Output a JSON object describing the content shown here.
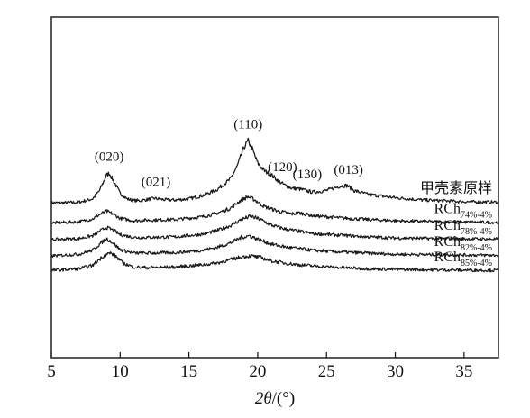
{
  "chart_data": {
    "type": "line",
    "xlabel_italic": "2θ",
    "xlabel_rest": "/(°)",
    "xlim": [
      5,
      37.5
    ],
    "xticks": [
      5,
      10,
      15,
      20,
      25,
      30,
      35
    ],
    "tick_labels": [
      "5",
      "10",
      "15",
      "20",
      "25",
      "30",
      "35"
    ],
    "peak_labels": [
      {
        "text": "(020)",
        "x": 9.2
      },
      {
        "text": "(021)",
        "x": 12.6
      },
      {
        "text": "(110)",
        "x": 19.3
      },
      {
        "text": "(120)",
        "x": 21.8
      },
      {
        "text": "(130)",
        "x": 23.6
      },
      {
        "text": "(013)",
        "x": 26.6
      }
    ],
    "series": [
      {
        "name": "甲壳素原样",
        "name_base": "甲壳素原样",
        "name_sub": "",
        "baseline": 0.0,
        "x": [
          5,
          6,
          7,
          8,
          8.5,
          9,
          9.2,
          9.5,
          10,
          10.5,
          11,
          11.5,
          12,
          12.5,
          13,
          13.5,
          14,
          15,
          16,
          17,
          18,
          18.5,
          19,
          19.3,
          19.6,
          20,
          20.5,
          21,
          21.5,
          22,
          22.5,
          23,
          23.5,
          24,
          25,
          26,
          26.5,
          27,
          28,
          30,
          32,
          35,
          37.5
        ],
        "y": [
          0.3,
          0.3,
          0.4,
          1.0,
          2.5,
          5.2,
          5.6,
          4.3,
          2.0,
          1.0,
          0.7,
          0.7,
          0.9,
          1.1,
          0.9,
          0.8,
          0.8,
          1.0,
          1.6,
          2.6,
          4.5,
          6.8,
          10.2,
          11.4,
          10.0,
          7.4,
          6.0,
          5.3,
          4.2,
          3.4,
          2.9,
          2.8,
          2.5,
          2.2,
          2.5,
          3.3,
          3.4,
          2.5,
          1.8,
          1.2,
          0.8,
          0.5,
          0.4
        ]
      },
      {
        "name": "RCh74%-4%",
        "name_base": "RCh",
        "name_sub": "74%-4%",
        "baseline": -3.3,
        "x": [
          5,
          7,
          8,
          8.5,
          9,
          9.5,
          10,
          11,
          12,
          14,
          16,
          17,
          18,
          18.8,
          19.3,
          19.8,
          20.5,
          21.5,
          22.5,
          23,
          24,
          26,
          28,
          30,
          33,
          37.5
        ],
        "y": [
          0.0,
          0.2,
          0.7,
          1.5,
          2.1,
          1.6,
          0.8,
          0.4,
          0.5,
          0.6,
          1.1,
          1.7,
          2.6,
          4.1,
          4.7,
          4.1,
          2.9,
          2.1,
          1.6,
          1.8,
          1.3,
          0.9,
          0.6,
          0.4,
          0.2,
          0.1
        ]
      },
      {
        "name": "RCh78%-4%",
        "name_base": "RCh",
        "name_sub": "78%-4%",
        "baseline": -6.3,
        "x": [
          5,
          7,
          8,
          8.5,
          9,
          9.5,
          10,
          11,
          12,
          14,
          16,
          17,
          18,
          18.8,
          19.5,
          20.2,
          21,
          22,
          23,
          24,
          26,
          28,
          30,
          33,
          37.5
        ],
        "y": [
          0.0,
          0.2,
          0.7,
          1.5,
          2.2,
          1.7,
          0.9,
          0.4,
          0.4,
          0.5,
          1.0,
          1.6,
          2.5,
          3.6,
          4.2,
          3.6,
          2.6,
          1.9,
          1.5,
          1.1,
          0.8,
          0.5,
          0.3,
          0.2,
          0.1
        ]
      },
      {
        "name": "RCh82%-4%",
        "name_base": "RCh",
        "name_sub": "82%-4%",
        "baseline": -9.2,
        "x": [
          5,
          7,
          8,
          8.5,
          9,
          9.5,
          10,
          11,
          12,
          14,
          16,
          17,
          18,
          18.8,
          19.4,
          20,
          21,
          22,
          23,
          24,
          26,
          28,
          30,
          33,
          37.5
        ],
        "y": [
          0.0,
          0.3,
          1.0,
          2.1,
          3.1,
          2.3,
          1.1,
          0.5,
          0.5,
          0.6,
          1.0,
          1.5,
          2.3,
          3.3,
          3.6,
          3.0,
          2.1,
          1.6,
          1.3,
          1.0,
          0.7,
          0.5,
          0.3,
          0.2,
          0.1
        ]
      },
      {
        "name": "RCh85%-4%",
        "name_base": "RCh",
        "name_sub": "85%-4%",
        "baseline": -11.8,
        "x": [
          5,
          7,
          8,
          8.5,
          9,
          9.3,
          9.7,
          10.2,
          11,
          12,
          14,
          16,
          17,
          18,
          18.8,
          19.5,
          20.2,
          21,
          22,
          23,
          24,
          26,
          28,
          30,
          33,
          37.5
        ],
        "y": [
          0.0,
          0.3,
          0.9,
          2.0,
          2.9,
          3.1,
          2.5,
          1.3,
          0.6,
          0.5,
          0.6,
          1.0,
          1.3,
          1.9,
          2.4,
          2.6,
          2.3,
          1.7,
          1.3,
          1.0,
          0.8,
          0.5,
          0.3,
          0.2,
          0.1,
          0.0
        ]
      }
    ]
  }
}
